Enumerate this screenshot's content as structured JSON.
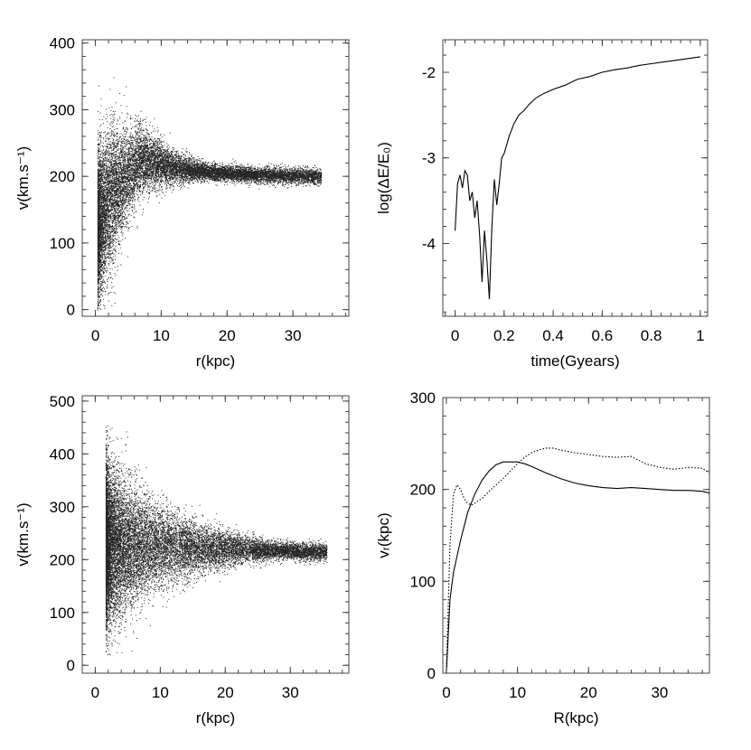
{
  "chart_data": [
    {
      "type": "scatter",
      "xlabel": "r(kpc)",
      "ylabel": "v(km.s⁻¹)",
      "xlim": [
        -2,
        38.5
      ],
      "ylim": [
        -10,
        405
      ],
      "xticks": [
        0,
        10,
        20,
        30
      ],
      "yticks": [
        0,
        100,
        200,
        300,
        400
      ],
      "xtick_labels": [
        "0",
        "10",
        "20",
        "30"
      ],
      "ytick_labels": [
        "0",
        "100",
        "200",
        "300",
        "400"
      ],
      "grid": false,
      "point_cloud": {
        "count": 14000,
        "r_max": 34,
        "v_peak": 225,
        "r_peak": 7,
        "v_inner": 90,
        "v_outer": 200,
        "v_min": 0,
        "v_max": 360
      }
    },
    {
      "type": "line",
      "xlabel": "time(Gyears)",
      "ylabel": "log(ΔE/E₀)",
      "xlim": [
        -0.05,
        1.03
      ],
      "ylim": [
        -4.85,
        -1.62
      ],
      "xticks": [
        0,
        0.2,
        0.4,
        0.6,
        0.8,
        1
      ],
      "yticks": [
        -4,
        -3,
        -2
      ],
      "xtick_labels": [
        "0",
        "0.2",
        "0.4",
        "0.6",
        "0.8",
        "1"
      ],
      "ytick_labels": [
        "-4",
        "-3",
        "-2"
      ],
      "grid": false,
      "series": [
        {
          "x": [
            0.0,
            0.01,
            0.02,
            0.03,
            0.04,
            0.05,
            0.06,
            0.07,
            0.08,
            0.09,
            0.1,
            0.11,
            0.12,
            0.13,
            0.14,
            0.15,
            0.16,
            0.17,
            0.18,
            0.19,
            0.2,
            0.22,
            0.24,
            0.26,
            0.28,
            0.3,
            0.33,
            0.36,
            0.4,
            0.45,
            0.5,
            0.55,
            0.6,
            0.65,
            0.7,
            0.75,
            0.8,
            0.85,
            0.9,
            0.95,
            1.0
          ],
          "y": [
            -3.85,
            -3.3,
            -3.2,
            -3.35,
            -3.15,
            -3.2,
            -3.5,
            -3.4,
            -3.7,
            -3.5,
            -3.9,
            -4.45,
            -3.85,
            -4.2,
            -4.65,
            -3.8,
            -3.25,
            -3.55,
            -3.3,
            -3.0,
            -2.95,
            -2.75,
            -2.6,
            -2.5,
            -2.45,
            -2.38,
            -2.3,
            -2.25,
            -2.2,
            -2.15,
            -2.08,
            -2.05,
            -2.0,
            -1.97,
            -1.95,
            -1.92,
            -1.9,
            -1.88,
            -1.86,
            -1.84,
            -1.82
          ]
        }
      ]
    },
    {
      "type": "scatter",
      "xlabel": "r(kpc)",
      "ylabel": "v(km.s⁻¹)",
      "xlim": [
        -2,
        39
      ],
      "ylim": [
        -15,
        510
      ],
      "xticks": [
        0,
        10,
        20,
        30
      ],
      "yticks": [
        0,
        100,
        200,
        300,
        400,
        500
      ],
      "xtick_labels": [
        "0",
        "10",
        "20",
        "30"
      ],
      "ytick_labels": [
        "0",
        "100",
        "200",
        "300",
        "400",
        "500"
      ],
      "grid": false,
      "point_cloud": {
        "count": 16000,
        "r_max": 34,
        "v_peak": 230,
        "r_peak": 3,
        "v_inner": 220,
        "v_outer": 215,
        "v_min": 20,
        "v_max": 460
      }
    },
    {
      "type": "line",
      "xlabel": "R(kpc)",
      "ylabel": "vᵣ(kpc)",
      "xlim": [
        -0.5,
        37
      ],
      "ylim": [
        0,
        300
      ],
      "xticks": [
        0,
        10,
        20,
        30
      ],
      "yticks": [
        0,
        100,
        200,
        300
      ],
      "xtick_labels": [
        "0",
        "10",
        "20",
        "30"
      ],
      "ytick_labels": [
        "0",
        "100",
        "200",
        "300"
      ],
      "grid": false,
      "series": [
        {
          "style": "solid",
          "x": [
            0,
            0.5,
            1,
            2,
            3,
            4,
            5,
            6,
            7,
            8,
            9,
            10,
            11,
            12,
            14,
            16,
            18,
            20,
            22,
            24,
            26,
            28,
            30,
            32,
            34,
            36,
            37
          ],
          "y": [
            0,
            80,
            110,
            145,
            175,
            195,
            210,
            220,
            227,
            230,
            230,
            230,
            228,
            225,
            218,
            212,
            207,
            204,
            202,
            201,
            202,
            201,
            200,
            199,
            199,
            198,
            196
          ]
        },
        {
          "style": "dotted",
          "x": [
            0,
            0.5,
            1,
            1.5,
            2,
            2.5,
            3,
            3.5,
            4,
            4.5,
            5,
            6,
            7,
            8,
            9,
            10,
            11,
            12,
            13,
            14,
            15,
            16,
            18,
            20,
            22,
            24,
            26,
            28,
            30,
            32,
            34,
            36,
            37
          ],
          "y": [
            0,
            140,
            195,
            205,
            200,
            190,
            185,
            183,
            185,
            188,
            190,
            198,
            205,
            212,
            220,
            228,
            235,
            240,
            243,
            245,
            245,
            243,
            240,
            238,
            236,
            235,
            236,
            228,
            224,
            222,
            224,
            223,
            218
          ]
        }
      ]
    }
  ]
}
